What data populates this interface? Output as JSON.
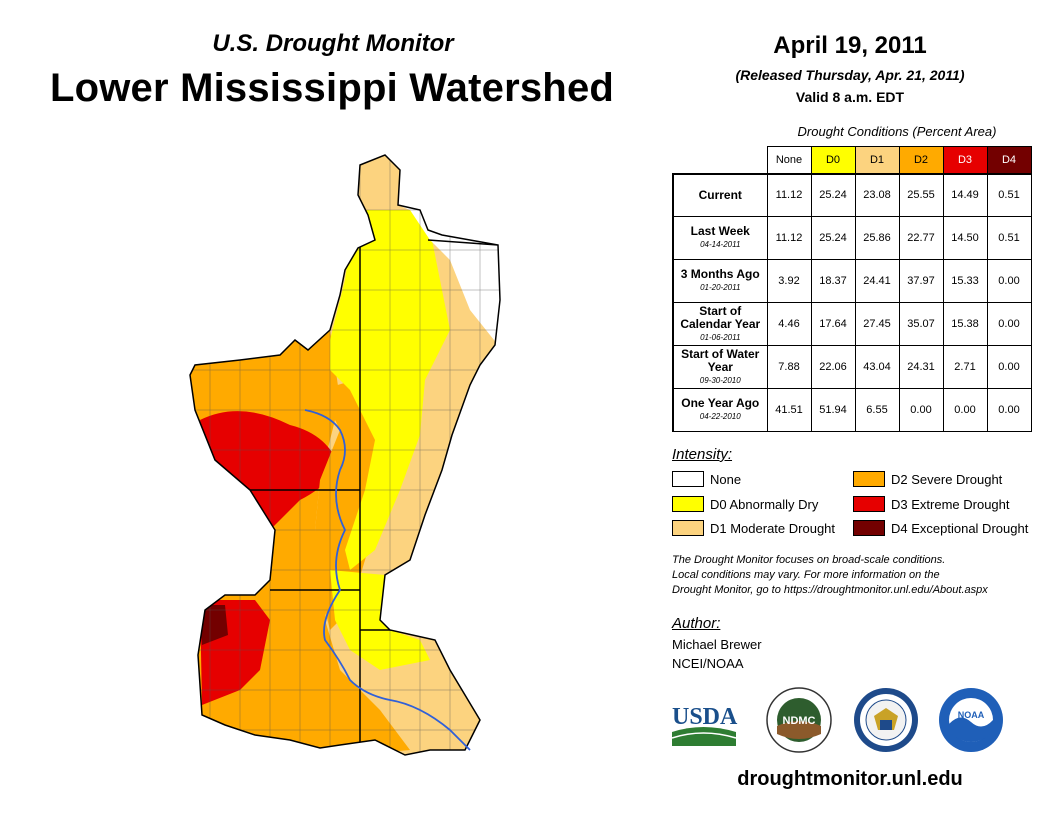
{
  "header": {
    "subtitle": "U.S. Drought Monitor",
    "title": "Lower Mississippi Watershed"
  },
  "date_block": {
    "date": "April 19, 2011",
    "released": "(Released Thursday, Apr. 21, 2011)",
    "valid": "Valid 8 a.m. EDT"
  },
  "table": {
    "title": "Drought Conditions (Percent Area)",
    "columns": [
      "None",
      "D0",
      "D1",
      "D2",
      "D3",
      "D4"
    ],
    "rows": [
      {
        "label": "Current",
        "date": "",
        "values": [
          "11.12",
          "25.24",
          "23.08",
          "25.55",
          "14.49",
          "0.51"
        ]
      },
      {
        "label": "Last Week",
        "date": "04-14-2011",
        "values": [
          "11.12",
          "25.24",
          "25.86",
          "22.77",
          "14.50",
          "0.51"
        ]
      },
      {
        "label": "3 Months Ago",
        "date": "01-20-2011",
        "values": [
          "3.92",
          "18.37",
          "24.41",
          "37.97",
          "15.33",
          "0.00"
        ]
      },
      {
        "label": "Start of Calendar Year",
        "date": "01-06-2011",
        "values": [
          "4.46",
          "17.64",
          "27.45",
          "35.07",
          "15.38",
          "0.00"
        ]
      },
      {
        "label": "Start of Water Year",
        "date": "09-30-2010",
        "values": [
          "7.88",
          "22.06",
          "43.04",
          "24.31",
          "2.71",
          "0.00"
        ]
      },
      {
        "label": "One Year Ago",
        "date": "04-22-2010",
        "values": [
          "41.51",
          "51.94",
          "6.55",
          "0.00",
          "0.00",
          "0.00"
        ]
      }
    ]
  },
  "legend": {
    "title": "Intensity:",
    "items": [
      {
        "label": "None",
        "color": "#ffffff"
      },
      {
        "label": "D0 Abnormally Dry",
        "color": "#ffff00"
      },
      {
        "label": "D1 Moderate Drought",
        "color": "#fcd37f"
      },
      {
        "label": "D2 Severe Drought",
        "color": "#ffaa00"
      },
      {
        "label": "D3 Extreme Drought",
        "color": "#e60000"
      },
      {
        "label": "D4 Exceptional Drought",
        "color": "#730000"
      }
    ]
  },
  "note": {
    "line1": "The Drought Monitor focuses on broad-scale conditions.",
    "line2": "Local conditions may vary. For more information on the",
    "line3": "Drought Monitor, go to https://droughtmonitor.unl.edu/About.aspx"
  },
  "author": {
    "title": "Author:",
    "name": "Michael Brewer",
    "org": "NCEI/NOAA"
  },
  "logos": {
    "usda": "USDA",
    "ndmc": "NDMC",
    "noaa": "NOAA"
  },
  "footer": {
    "url": "droughtmonitor.unl.edu"
  }
}
